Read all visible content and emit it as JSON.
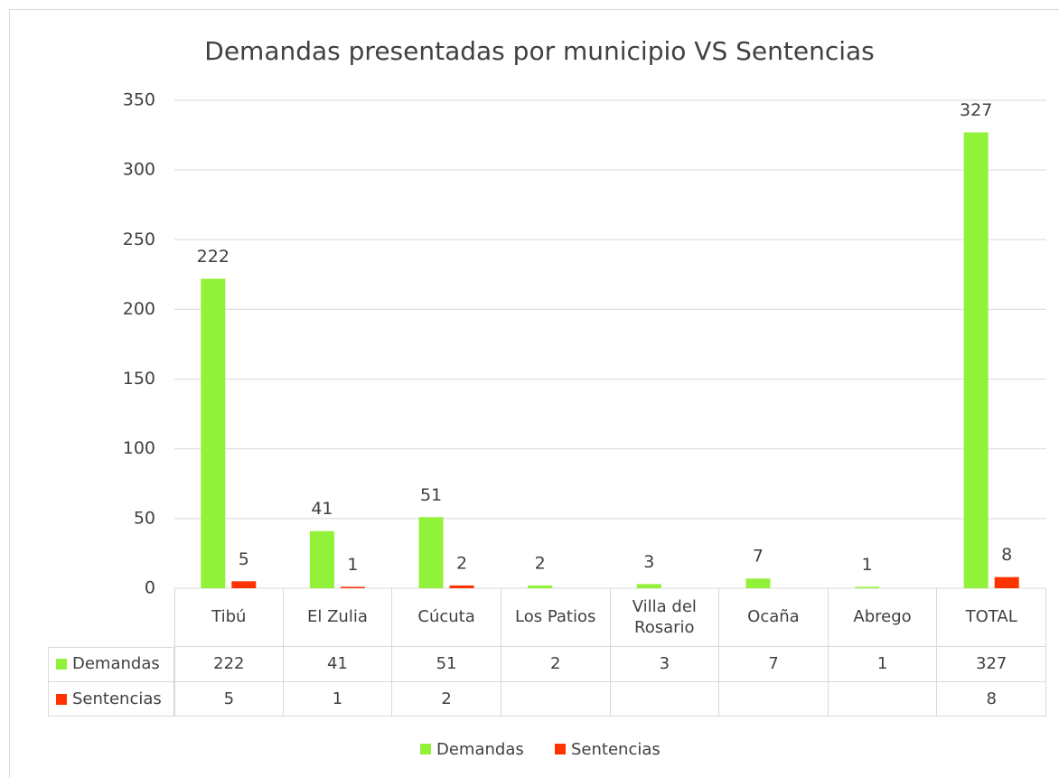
{
  "chart_data": {
    "type": "bar",
    "title": "Demandas presentadas por municipio VS Sentencias",
    "categories": [
      "Tibú",
      "El Zulia",
      "Cúcuta",
      "Los Patios",
      "Villa del Rosario",
      "Ocaña",
      "Abrego",
      "TOTAL"
    ],
    "series": [
      {
        "name": "Demandas",
        "color": "#92f23a",
        "values": [
          222,
          41,
          51,
          2,
          3,
          7,
          1,
          327
        ]
      },
      {
        "name": "Sentencias",
        "color": "#ff3300",
        "values": [
          5,
          1,
          2,
          null,
          null,
          null,
          null,
          8
        ]
      }
    ],
    "ylim": [
      0,
      350
    ],
    "yticks": [
      0,
      50,
      100,
      150,
      200,
      250,
      300,
      350
    ],
    "grid": true,
    "legend": "bottom"
  }
}
